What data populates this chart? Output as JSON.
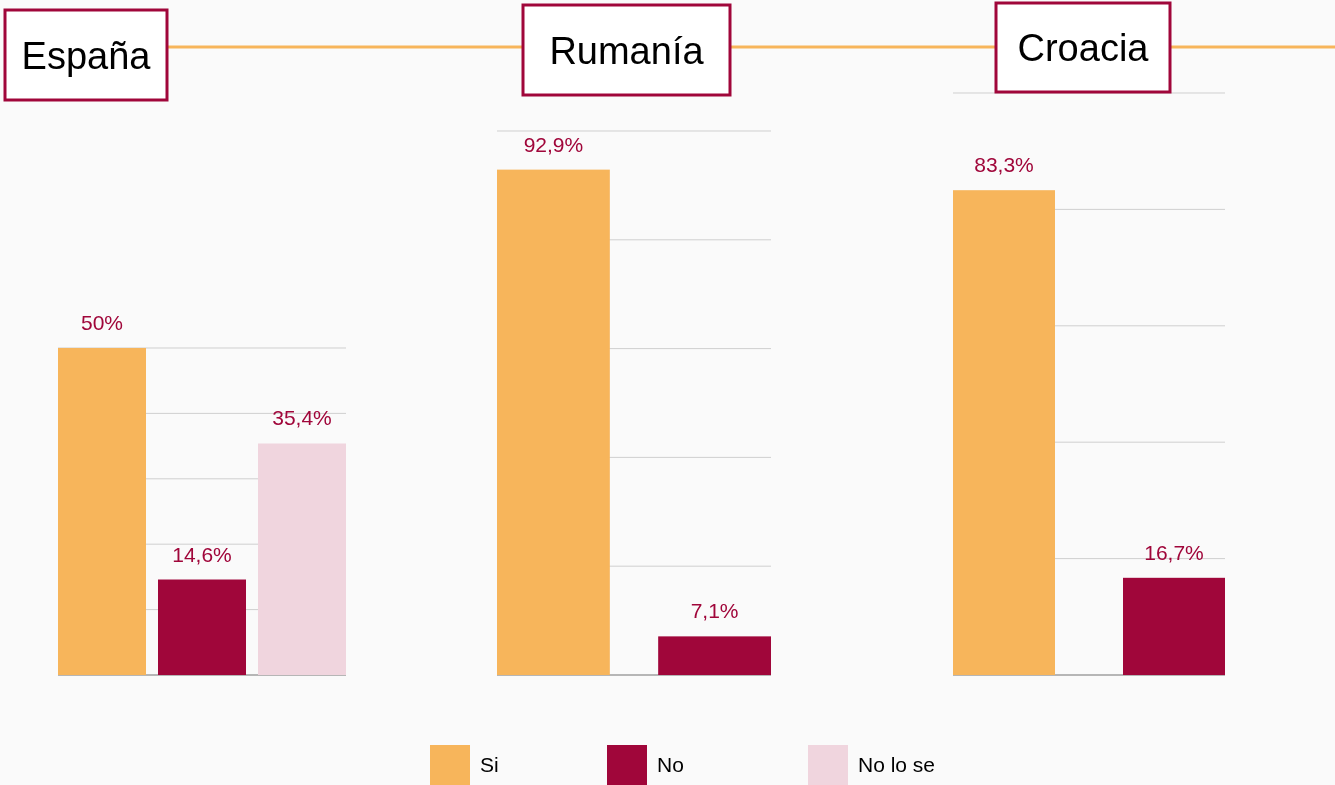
{
  "chart_data": [
    {
      "type": "bar",
      "title": "España",
      "categories": [
        null
      ],
      "series": [
        {
          "name": "Si",
          "color": "#f7b55b",
          "values": [
            50
          ],
          "value_labels": [
            "50%"
          ]
        },
        {
          "name": "No",
          "color": "#a0063a",
          "values": [
            14.6
          ],
          "value_labels": [
            "14,6%"
          ]
        },
        {
          "name": "No lo se",
          "color": "#f0d5de",
          "values": [
            35.4
          ],
          "value_labels": [
            "35,4%"
          ]
        }
      ],
      "ylim": [
        0,
        50
      ],
      "yticks": [
        {
          "value": 0,
          "label": null
        },
        {
          "value": 10,
          "label": null
        },
        {
          "value": 20,
          "label": null
        },
        {
          "value": 30,
          "label": null
        },
        {
          "value": 40,
          "label": null
        },
        {
          "value": 50,
          "label": null
        }
      ],
      "grid": "y",
      "legend": "bottom"
    },
    {
      "type": "bar",
      "title": "Rumanía",
      "categories": [
        null
      ],
      "series": [
        {
          "color": "#f7b55b",
          "values": [
            92.9
          ],
          "value_labels": [
            "92,9%"
          ]
        },
        {
          "color": "#a0063a",
          "values": [
            7.1
          ],
          "value_labels": [
            "7,1%"
          ]
        }
      ],
      "ylim": [
        0,
        100
      ],
      "yticks": [
        {
          "value": 0,
          "label": null
        },
        {
          "value": 20,
          "label": null
        },
        {
          "value": 40,
          "label": null
        },
        {
          "value": 60,
          "label": null
        },
        {
          "value": 80,
          "label": null
        },
        {
          "value": 100,
          "label": null
        }
      ],
      "grid": "y"
    },
    {
      "type": "bar",
      "title": "Croacia",
      "categories": [
        null
      ],
      "series": [
        {
          "color": "#f7b55b",
          "values": [
            83.3
          ],
          "value_labels": [
            "83,3%"
          ]
        },
        {
          "color": "#a0063a",
          "values": [
            16.7
          ],
          "value_labels": [
            "16,7%"
          ]
        }
      ],
      "ylim": [
        0,
        100
      ],
      "yticks": [
        {
          "value": 0,
          "label": null
        },
        {
          "value": 20,
          "label": null
        },
        {
          "value": 40,
          "label": null
        },
        {
          "value": 60,
          "label": null
        },
        {
          "value": 80,
          "label": null
        },
        {
          "value": 100,
          "label": null
        }
      ],
      "grid": "y"
    }
  ]
}
